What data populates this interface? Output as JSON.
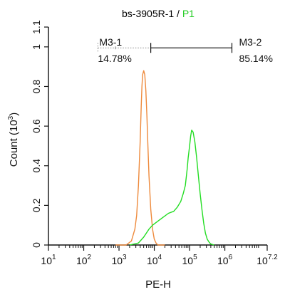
{
  "chart_data": {
    "type": "line",
    "title": {
      "sample": "bs-3905R-1",
      "separator": " / ",
      "gate": "P1"
    },
    "xlabel": "PE-H",
    "ylabel": {
      "base": "Count (10",
      "exp": "3",
      "close": ")"
    },
    "x_scale": "log",
    "xlim": [
      1,
      7.2
    ],
    "ylim": [
      0,
      1.1
    ],
    "x_ticks": [
      {
        "v": 1,
        "base": "10",
        "exp": "1"
      },
      {
        "v": 2,
        "base": "10",
        "exp": "2"
      },
      {
        "v": 3,
        "base": "10",
        "exp": "3"
      },
      {
        "v": 4,
        "base": "10",
        "exp": "4"
      },
      {
        "v": 5,
        "base": "10",
        "exp": "5"
      },
      {
        "v": 6,
        "base": "10",
        "exp": "6"
      },
      {
        "v": 7.2,
        "base": "10",
        "exp": "7.2"
      }
    ],
    "y_ticks": [
      "0",
      "0.2",
      "0.4",
      "0.6",
      "0.8",
      "1",
      "1.1"
    ],
    "colors": {
      "control": "#ee8a3c",
      "sample": "#22dd22",
      "gate_accent": "#22cc22",
      "axis": "#111111"
    },
    "series": [
      {
        "color": "#ee8a3c",
        "x": [
          2.9,
          3.2,
          3.35,
          3.45,
          3.5,
          3.55,
          3.6,
          3.63,
          3.65,
          3.67,
          3.7,
          3.73,
          3.76,
          3.79,
          3.82,
          3.85,
          3.9,
          3.95,
          4.0,
          4.05,
          4.1,
          4.3
        ],
        "y": [
          0,
          0,
          0.02,
          0.08,
          0.15,
          0.3,
          0.52,
          0.7,
          0.8,
          0.86,
          0.88,
          0.86,
          0.78,
          0.65,
          0.5,
          0.35,
          0.18,
          0.08,
          0.03,
          0.01,
          0,
          0
        ]
      },
      {
        "color": "#22dd22",
        "x": [
          3.3,
          3.55,
          3.7,
          3.85,
          3.95,
          4.1,
          4.25,
          4.4,
          4.55,
          4.65,
          4.75,
          4.82,
          4.88,
          4.93,
          4.96,
          5.0,
          5.03,
          5.06,
          5.1,
          5.15,
          5.2,
          5.25,
          5.3,
          5.35,
          5.4,
          5.45,
          5.5,
          5.55,
          5.6,
          5.7
        ],
        "y": [
          0,
          0.01,
          0.04,
          0.08,
          0.1,
          0.12,
          0.14,
          0.16,
          0.17,
          0.19,
          0.22,
          0.26,
          0.3,
          0.38,
          0.44,
          0.5,
          0.55,
          0.58,
          0.57,
          0.52,
          0.44,
          0.35,
          0.26,
          0.18,
          0.11,
          0.06,
          0.03,
          0.015,
          0.005,
          0
        ]
      }
    ],
    "gates": [
      {
        "name": "M3-1",
        "percent": "14.78%",
        "from": 2.4,
        "to": 3.9,
        "y": 0.995
      },
      {
        "name": "M3-2",
        "percent": "85.14%",
        "from": 3.9,
        "to": 6.2,
        "y": 0.995
      }
    ]
  }
}
